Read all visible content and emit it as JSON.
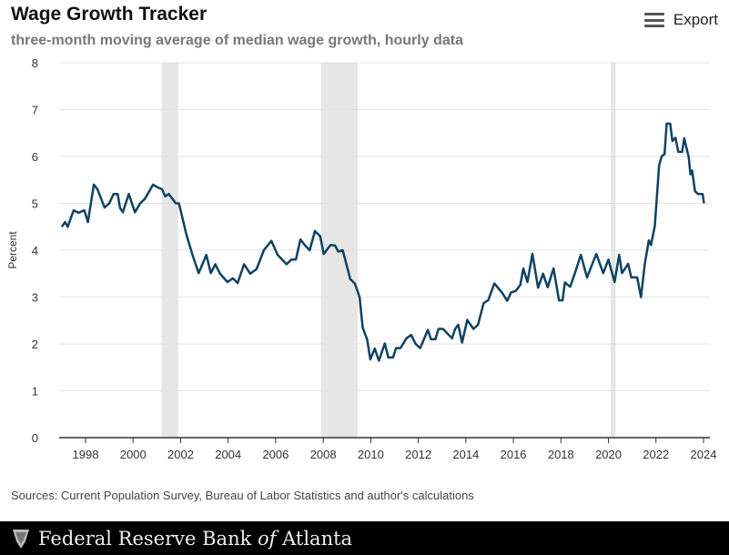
{
  "header": {
    "title": "Wage Growth Tracker",
    "subtitle": "three-month moving average of median wage growth, hourly data",
    "export_label": "Export"
  },
  "source": "Sources: Current Population Survey, Bureau of Labor Statistics and author's calculations",
  "footer": {
    "logo_text_1": "Federal Reserve Bank ",
    "logo_text_of": "of",
    "logo_text_2": " Atlanta"
  },
  "chart_data": {
    "type": "line",
    "title": "Wage Growth Tracker",
    "ylabel": "Percent",
    "xlabel": "",
    "ylim": [
      0,
      8
    ],
    "xlim": [
      1996.9,
      2024.5
    ],
    "yticks": [
      "0",
      "1",
      "2",
      "3",
      "4",
      "5",
      "6",
      "7",
      "8"
    ],
    "xticks": [
      "1998",
      "2000",
      "2002",
      "2004",
      "2006",
      "2008",
      "2010",
      "2012",
      "2014",
      "2016",
      "2018",
      "2020",
      "2022",
      "2024"
    ],
    "grid": true,
    "line_color": "#0e4263",
    "recessions": [
      [
        2001.2,
        2001.9
      ],
      [
        2007.9,
        2009.45
      ],
      [
        2020.1,
        2020.3
      ]
    ],
    "series": [
      {
        "name": "Wage growth",
        "points": [
          [
            1997.0,
            4.5
          ],
          [
            1997.14,
            4.6
          ],
          [
            1997.25,
            4.5
          ],
          [
            1997.5,
            4.85
          ],
          [
            1997.7,
            4.8
          ],
          [
            1997.95,
            4.85
          ],
          [
            1998.1,
            4.6
          ],
          [
            1998.35,
            5.4
          ],
          [
            1998.5,
            5.3
          ],
          [
            1998.8,
            4.91
          ],
          [
            1999.0,
            5.0
          ],
          [
            1999.18,
            5.2
          ],
          [
            1999.35,
            5.2
          ],
          [
            1999.45,
            4.9
          ],
          [
            1999.57,
            4.81
          ],
          [
            1999.82,
            5.2
          ],
          [
            2000.08,
            4.81
          ],
          [
            2000.3,
            5.0
          ],
          [
            2000.5,
            5.1
          ],
          [
            2000.84,
            5.4
          ],
          [
            2001.0,
            5.35
          ],
          [
            2001.22,
            5.3
          ],
          [
            2001.35,
            5.15
          ],
          [
            2001.5,
            5.2
          ],
          [
            2001.8,
            5.0
          ],
          [
            2001.93,
            5.0
          ],
          [
            2002.25,
            4.32
          ],
          [
            2002.5,
            3.9
          ],
          [
            2002.76,
            3.51
          ],
          [
            2003.08,
            3.9
          ],
          [
            2003.27,
            3.51
          ],
          [
            2003.46,
            3.7
          ],
          [
            2003.66,
            3.5
          ],
          [
            2003.97,
            3.32
          ],
          [
            2004.2,
            3.4
          ],
          [
            2004.4,
            3.3
          ],
          [
            2004.67,
            3.7
          ],
          [
            2004.93,
            3.5
          ],
          [
            2005.2,
            3.6
          ],
          [
            2005.5,
            4.0
          ],
          [
            2005.82,
            4.2
          ],
          [
            2006.08,
            3.9
          ],
          [
            2006.46,
            3.7
          ],
          [
            2006.66,
            3.8
          ],
          [
            2006.85,
            3.8
          ],
          [
            2007.04,
            4.23
          ],
          [
            2007.24,
            4.1
          ],
          [
            2007.43,
            4.0
          ],
          [
            2007.65,
            4.41
          ],
          [
            2007.87,
            4.3
          ],
          [
            2008.02,
            3.92
          ],
          [
            2008.31,
            4.11
          ],
          [
            2008.5,
            4.1
          ],
          [
            2008.63,
            3.97
          ],
          [
            2008.82,
            4.0
          ],
          [
            2009.14,
            3.38
          ],
          [
            2009.33,
            3.29
          ],
          [
            2009.53,
            3.0
          ],
          [
            2009.66,
            2.35
          ],
          [
            2009.85,
            2.09
          ],
          [
            2009.98,
            1.67
          ],
          [
            2010.17,
            1.9
          ],
          [
            2010.34,
            1.64
          ],
          [
            2010.59,
            2.01
          ],
          [
            2010.74,
            1.71
          ],
          [
            2010.94,
            1.71
          ],
          [
            2011.06,
            1.91
          ],
          [
            2011.25,
            1.91
          ],
          [
            2011.5,
            2.12
          ],
          [
            2011.7,
            2.19
          ],
          [
            2011.89,
            2.0
          ],
          [
            2012.08,
            1.91
          ],
          [
            2012.4,
            2.3
          ],
          [
            2012.53,
            2.1
          ],
          [
            2012.72,
            2.1
          ],
          [
            2012.85,
            2.32
          ],
          [
            2013.04,
            2.32
          ],
          [
            2013.23,
            2.22
          ],
          [
            2013.42,
            2.12
          ],
          [
            2013.55,
            2.32
          ],
          [
            2013.68,
            2.41
          ],
          [
            2013.84,
            2.03
          ],
          [
            2014.06,
            2.51
          ],
          [
            2014.32,
            2.32
          ],
          [
            2014.51,
            2.41
          ],
          [
            2014.75,
            2.87
          ],
          [
            2014.94,
            2.93
          ],
          [
            2015.2,
            3.29
          ],
          [
            2015.52,
            3.1
          ],
          [
            2015.74,
            2.92
          ],
          [
            2015.9,
            3.1
          ],
          [
            2016.1,
            3.13
          ],
          [
            2016.29,
            3.26
          ],
          [
            2016.42,
            3.61
          ],
          [
            2016.59,
            3.32
          ],
          [
            2016.8,
            3.92
          ],
          [
            2017.04,
            3.2
          ],
          [
            2017.25,
            3.5
          ],
          [
            2017.44,
            3.21
          ],
          [
            2017.69,
            3.61
          ],
          [
            2017.92,
            2.93
          ],
          [
            2018.07,
            2.93
          ],
          [
            2018.17,
            3.31
          ],
          [
            2018.39,
            3.22
          ],
          [
            2018.58,
            3.5
          ],
          [
            2018.84,
            3.9
          ],
          [
            2019.1,
            3.42
          ],
          [
            2019.49,
            3.92
          ],
          [
            2019.78,
            3.51
          ],
          [
            2020.0,
            3.8
          ],
          [
            2020.26,
            3.32
          ],
          [
            2020.45,
            3.9
          ],
          [
            2020.57,
            3.51
          ],
          [
            2020.83,
            3.71
          ],
          [
            2020.96,
            3.42
          ],
          [
            2021.21,
            3.42
          ],
          [
            2021.37,
            3.0
          ],
          [
            2021.53,
            3.71
          ],
          [
            2021.7,
            4.21
          ],
          [
            2021.79,
            4.11
          ],
          [
            2021.95,
            4.52
          ],
          [
            2022.13,
            5.81
          ],
          [
            2022.24,
            6.0
          ],
          [
            2022.36,
            6.05
          ],
          [
            2022.45,
            6.7
          ],
          [
            2022.6,
            6.7
          ],
          [
            2022.69,
            6.33
          ],
          [
            2022.82,
            6.4
          ],
          [
            2022.94,
            6.1
          ],
          [
            2023.1,
            6.1
          ],
          [
            2023.19,
            6.39
          ],
          [
            2023.38,
            5.98
          ],
          [
            2023.45,
            5.62
          ],
          [
            2023.52,
            5.7
          ],
          [
            2023.64,
            5.26
          ],
          [
            2023.77,
            5.2
          ],
          [
            2023.96,
            5.2
          ],
          [
            2024.02,
            5.0
          ]
        ]
      }
    ]
  }
}
